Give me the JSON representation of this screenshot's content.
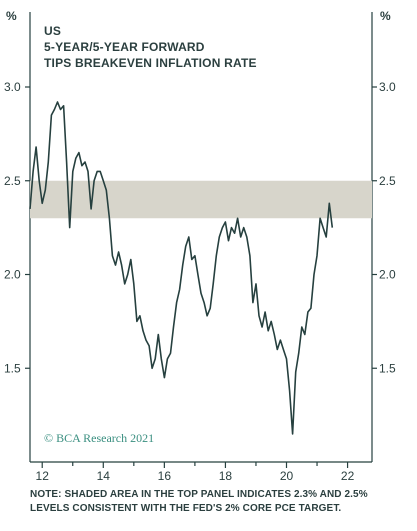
{
  "chart_data": {
    "type": "line",
    "title_lines": [
      "US",
      "5-YEAR/5-YEAR FORWARD",
      "TIPS BREAKEVEN INFLATION RATE"
    ],
    "ylabel_left": "%",
    "ylabel_right": "%",
    "ylim": [
      1.0,
      3.4
    ],
    "yticks": [
      1.5,
      2.0,
      2.5,
      3.0
    ],
    "ytick_labels": [
      "1.5",
      "2.0",
      "2.5",
      "3.0"
    ],
    "xlim": [
      2011.6,
      2022.8
    ],
    "xticks": [
      2012,
      2014,
      2016,
      2018,
      2020,
      2022
    ],
    "xtick_labels": [
      "12",
      "14",
      "16",
      "18",
      "20",
      "22"
    ],
    "shaded_band": [
      2.3,
      2.5
    ],
    "band_color": "#d7d5cb",
    "line_color": "#26403f",
    "grid": false,
    "legend": "none",
    "copyright": "© BCA Research 2021",
    "series": [
      {
        "x": [
          2011.6,
          2011.7,
          2011.8,
          2011.9,
          2012.0,
          2012.1,
          2012.2,
          2012.3,
          2012.4,
          2012.5,
          2012.6,
          2012.7,
          2012.8,
          2012.9,
          2013.0,
          2013.1,
          2013.2,
          2013.3,
          2013.4,
          2013.5,
          2013.6,
          2013.7,
          2013.8,
          2013.9,
          2014.0,
          2014.1,
          2014.2,
          2014.3,
          2014.4,
          2014.5,
          2014.6,
          2014.7,
          2014.8,
          2014.9,
          2015.0,
          2015.1,
          2015.2,
          2015.3,
          2015.4,
          2015.5,
          2015.6,
          2015.7,
          2015.8,
          2015.9,
          2016.0,
          2016.1,
          2016.2,
          2016.3,
          2016.4,
          2016.5,
          2016.6,
          2016.7,
          2016.8,
          2016.9,
          2017.0,
          2017.1,
          2017.2,
          2017.3,
          2017.4,
          2017.5,
          2017.6,
          2017.7,
          2017.8,
          2017.9,
          2018.0,
          2018.1,
          2018.2,
          2018.3,
          2018.4,
          2018.5,
          2018.6,
          2018.7,
          2018.8,
          2018.9,
          2019.0,
          2019.1,
          2019.2,
          2019.3,
          2019.4,
          2019.5,
          2019.6,
          2019.7,
          2019.8,
          2019.9,
          2020.0,
          2020.1,
          2020.2,
          2020.3,
          2020.4,
          2020.5,
          2020.6,
          2020.7,
          2020.8,
          2020.9,
          2021.0,
          2021.1,
          2021.2,
          2021.3,
          2021.4,
          2021.5
        ],
        "values": [
          2.35,
          2.55,
          2.68,
          2.5,
          2.38,
          2.45,
          2.6,
          2.85,
          2.88,
          2.92,
          2.88,
          2.9,
          2.6,
          2.25,
          2.55,
          2.62,
          2.65,
          2.58,
          2.6,
          2.55,
          2.35,
          2.5,
          2.55,
          2.55,
          2.5,
          2.45,
          2.3,
          2.1,
          2.05,
          2.12,
          2.05,
          1.95,
          2.0,
          2.08,
          1.95,
          1.75,
          1.78,
          1.7,
          1.65,
          1.62,
          1.5,
          1.55,
          1.68,
          1.55,
          1.45,
          1.55,
          1.58,
          1.72,
          1.85,
          1.92,
          2.05,
          2.15,
          2.2,
          2.08,
          2.1,
          2.0,
          1.9,
          1.85,
          1.78,
          1.82,
          1.95,
          2.1,
          2.2,
          2.25,
          2.28,
          2.18,
          2.25,
          2.22,
          2.3,
          2.2,
          2.25,
          2.2,
          2.1,
          1.85,
          1.95,
          1.78,
          1.72,
          1.8,
          1.7,
          1.75,
          1.68,
          1.6,
          1.65,
          1.6,
          1.55,
          1.38,
          1.15,
          1.48,
          1.58,
          1.72,
          1.68,
          1.8,
          1.82,
          2.0,
          2.1,
          2.3,
          2.25,
          2.2,
          2.38,
          2.25
        ]
      }
    ]
  },
  "footnote": {
    "line1": "NOTE: SHADED AREA IN THE TOP PANEL INDICATES 2.3% AND 2.5%",
    "line2": "LEVELS CONSISTENT WITH THE FED'S 2% CORE PCE TARGET."
  }
}
